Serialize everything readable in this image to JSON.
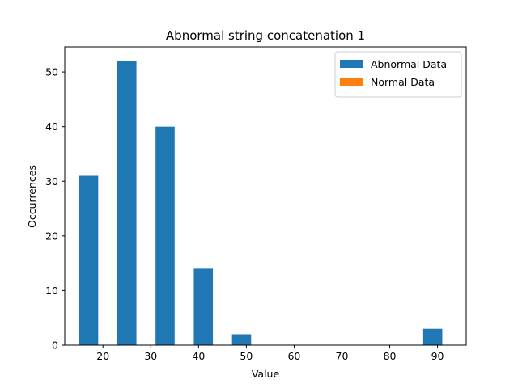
{
  "chart_data": {
    "type": "bar",
    "title": "Abnormal string concatenation 1",
    "xlabel": "Value",
    "ylabel": "Occurrences",
    "xlim": [
      12,
      96
    ],
    "ylim": [
      0,
      54.6
    ],
    "xticks": [
      20,
      30,
      40,
      50,
      60,
      70,
      80,
      90
    ],
    "yticks": [
      0,
      10,
      20,
      30,
      40,
      50
    ],
    "bar_width": 4.0,
    "legend_position": "top-right",
    "grid": false,
    "series": [
      {
        "name": "Abnormal Data",
        "color": "#1f77b4",
        "x": [
          17,
          25,
          33,
          41,
          49,
          57,
          65,
          73,
          81,
          89
        ],
        "values": [
          31,
          52,
          40,
          14,
          2,
          0,
          0,
          0,
          0,
          3
        ]
      },
      {
        "name": "Normal Data",
        "color": "#ff7f0e",
        "x": [
          21,
          29,
          37,
          45,
          53,
          61,
          69,
          77,
          85,
          93
        ],
        "values": [
          0,
          0,
          0,
          0,
          0,
          0,
          0,
          0,
          0,
          0
        ]
      }
    ]
  }
}
